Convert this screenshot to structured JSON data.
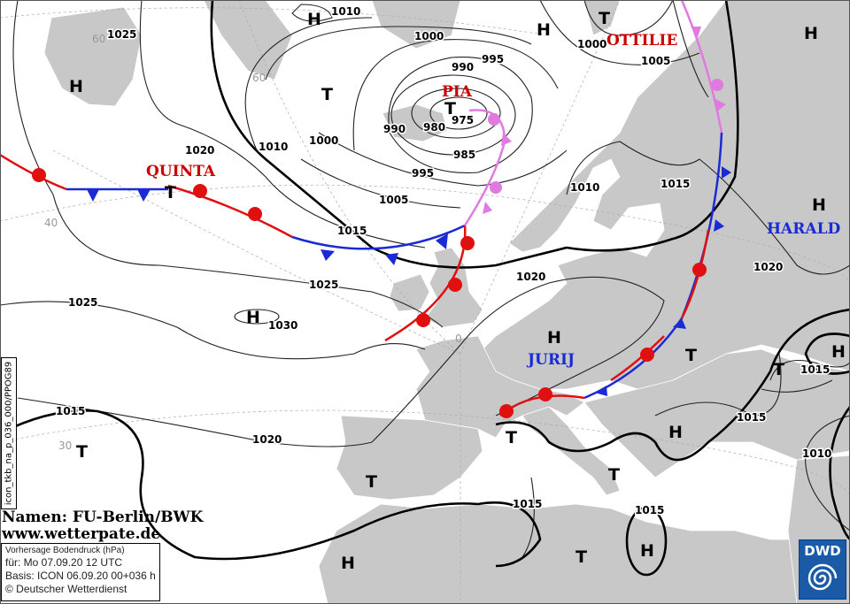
{
  "map": {
    "title": "Vorhersage Bodendruck (hPa)",
    "valid": "für:  Mo 07.09.20  12 UTC",
    "basis": "Basis: ICON  06.09.20 00+036 h",
    "copyright": "© Deutscher Wetterdienst",
    "names_credit": "Namen: FU-Berlin/BWK",
    "website": "www.wetterpate.de",
    "product_code": "icon_tkb_na_p_036_000/PPOG89",
    "logo_text": "DWD",
    "colors": {
      "land": "#c8c8c8",
      "sea": "#ffffff",
      "warm_front": "#e01010",
      "cold_front": "#1a2bd6",
      "occlusion": "#e07ae0",
      "low_name": "#cc0000",
      "high_name": "#1a2bd6",
      "logo": "#1a5aa6"
    }
  },
  "pressure_systems": [
    {
      "type": "H",
      "name": "",
      "value": "1010"
    },
    {
      "type": "H",
      "name": "",
      "value": ""
    },
    {
      "type": "T",
      "name": "OTTILIE",
      "value": "1000"
    },
    {
      "type": "H",
      "name": "",
      "value": ""
    },
    {
      "type": "H",
      "name": "",
      "value": "1025"
    },
    {
      "type": "T",
      "name": "",
      "value": ""
    },
    {
      "type": "T",
      "name": "PIA",
      "value": "975"
    },
    {
      "type": "T",
      "name": "QUINTA",
      "value": ""
    },
    {
      "type": "H",
      "name": "HARALD",
      "value": ""
    },
    {
      "type": "H",
      "name": "",
      "value": "1030"
    },
    {
      "type": "H",
      "name": "JURIJ",
      "value": ""
    },
    {
      "type": "T",
      "name": "",
      "value": ""
    },
    {
      "type": "T",
      "name": "",
      "value": "1015"
    },
    {
      "type": "H",
      "name": "",
      "value": ""
    },
    {
      "type": "T",
      "name": "",
      "value": ""
    },
    {
      "type": "T",
      "name": "",
      "value": ""
    },
    {
      "type": "H",
      "name": "",
      "value": ""
    },
    {
      "type": "T",
      "name": "",
      "value": ""
    },
    {
      "type": "T",
      "name": "",
      "value": ""
    },
    {
      "type": "H",
      "name": "",
      "value": ""
    },
    {
      "type": "T",
      "name": "",
      "value": ""
    },
    {
      "type": "H",
      "name": "",
      "value": ""
    }
  ],
  "isobar_labels": [
    "1005",
    "990",
    "995",
    "1000",
    "980",
    "990",
    "985",
    "995",
    "1005",
    "1000",
    "1010",
    "1020",
    "1015",
    "1010",
    "1015",
    "1020",
    "1020",
    "1025",
    "1025",
    "1015",
    "1020",
    "1015",
    "1010",
    "1015",
    "1015"
  ],
  "grid_labels": [
    "60",
    "60",
    "40",
    "30",
    "0"
  ]
}
